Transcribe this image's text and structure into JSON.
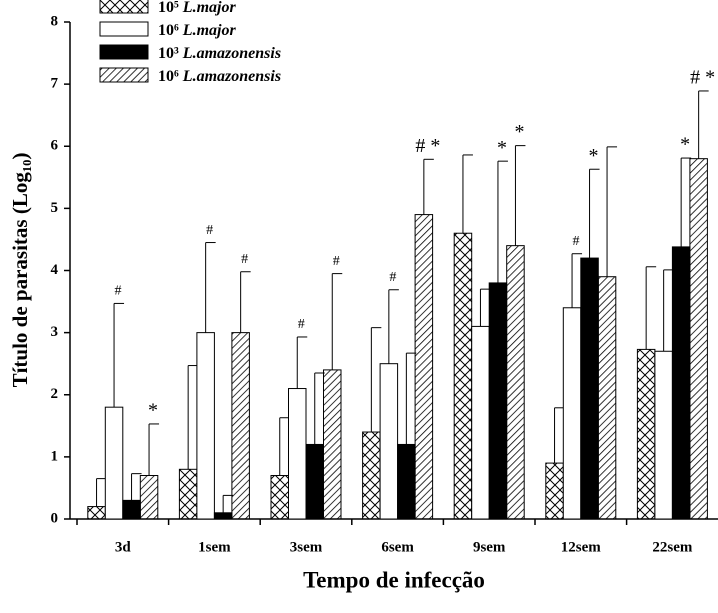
{
  "chart_data": {
    "type": "bar",
    "x_label": "Tempo de infecção",
    "y_label": "Título de parasitas (Log₁₀)",
    "categories": [
      "3d",
      "1sem",
      "3sem",
      "6sem",
      "9sem",
      "12sem",
      "22sem"
    ],
    "ylim": [
      0,
      8
    ],
    "yticks": [
      0,
      1,
      2,
      3,
      4,
      5,
      6,
      7,
      8
    ],
    "legend": "upper left",
    "series": [
      {
        "name": "10⁵ L.major",
        "color": "#ffffff",
        "pattern": "crosshatch",
        "values": [
          0.2,
          0.8,
          0.7,
          1.4,
          4.6,
          0.9,
          2.73
        ],
        "errors": [
          0.45,
          1.67,
          0.93,
          1.68,
          1.26,
          0.89,
          1.33
        ],
        "annotations": [
          null,
          null,
          null,
          null,
          null,
          null,
          null
        ]
      },
      {
        "name": "10⁶ L.major",
        "color": "#ffffff",
        "pattern": "none",
        "values": [
          1.8,
          3.0,
          2.1,
          2.5,
          3.1,
          3.4,
          2.7
        ],
        "errors": [
          1.67,
          1.45,
          0.83,
          1.19,
          0.6,
          0.87,
          1.31
        ],
        "annotations": [
          "#",
          "#",
          "#",
          "#",
          null,
          "#",
          null
        ]
      },
      {
        "name": "10³ L.amazonensis",
        "color": "#000000",
        "pattern": "none",
        "values": [
          0.3,
          0.1,
          1.2,
          1.2,
          3.8,
          4.2,
          4.38
        ],
        "errors": [
          0.43,
          0.28,
          1.15,
          1.47,
          1.96,
          1.43,
          1.43
        ],
        "annotations": [
          null,
          null,
          null,
          null,
          "*",
          "*",
          "*"
        ]
      },
      {
        "name": "10⁶ L.amazonensis",
        "color": "#ffffff",
        "pattern": "hatch",
        "values": [
          0.7,
          3.0,
          2.4,
          4.9,
          4.4,
          3.9,
          5.8
        ],
        "errors": [
          0.83,
          0.98,
          1.55,
          0.89,
          1.61,
          2.09,
          1.09
        ],
        "annotations": [
          "*",
          "#",
          "#",
          "# *",
          "*",
          null,
          "# *"
        ]
      }
    ]
  }
}
